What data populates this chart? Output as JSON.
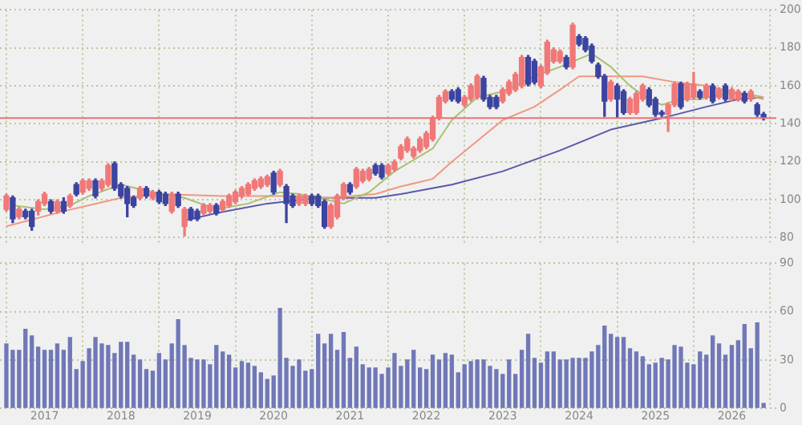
{
  "chart_data": [
    {
      "type": "candlestick",
      "tick_labels": "y",
      "grid": true,
      "xlim": [
        "2016-06",
        "2026-08"
      ],
      "xticks": [
        "2017",
        "2018",
        "2019",
        "2020",
        "2021",
        "2022",
        "2023",
        "2024",
        "2025",
        "2026"
      ],
      "ylim": [
        77,
        200
      ],
      "yticks": [
        80,
        100,
        120,
        140,
        160,
        180,
        200
      ],
      "x": [
        "2016-07",
        "2016-08",
        "2016-09",
        "2016-10",
        "2016-11",
        "2016-12",
        "2017-01",
        "2017-02",
        "2017-03",
        "2017-04",
        "2017-05",
        "2017-06",
        "2017-07",
        "2017-08",
        "2017-09",
        "2017-10",
        "2017-11",
        "2017-12",
        "2018-01",
        "2018-02",
        "2018-03",
        "2018-04",
        "2018-05",
        "2018-06",
        "2018-07",
        "2018-08",
        "2018-09",
        "2018-10",
        "2018-11",
        "2018-12",
        "2019-01",
        "2019-02",
        "2019-03",
        "2019-04",
        "2019-05",
        "2019-06",
        "2019-07",
        "2019-08",
        "2019-09",
        "2019-10",
        "2019-11",
        "2019-12",
        "2020-01",
        "2020-02",
        "2020-03",
        "2020-04",
        "2020-05",
        "2020-06",
        "2020-07",
        "2020-08",
        "2020-09",
        "2020-10",
        "2020-11",
        "2020-12",
        "2021-01",
        "2021-02",
        "2021-03",
        "2021-04",
        "2021-05",
        "2021-06",
        "2021-07",
        "2021-08",
        "2021-09",
        "2021-10",
        "2021-11",
        "2021-12",
        "2022-01",
        "2022-02",
        "2022-03",
        "2022-04",
        "2022-05",
        "2022-06",
        "2022-07",
        "2022-08",
        "2022-09",
        "2022-10",
        "2022-11",
        "2022-12",
        "2023-01",
        "2023-02",
        "2023-03",
        "2023-04",
        "2023-05",
        "2023-06",
        "2023-07",
        "2023-08",
        "2023-09",
        "2023-10",
        "2023-11",
        "2023-12",
        "2024-01",
        "2024-02",
        "2024-03",
        "2024-04",
        "2024-05",
        "2024-06",
        "2024-07",
        "2024-08",
        "2024-09",
        "2024-10",
        "2024-11",
        "2024-12",
        "2025-01",
        "2025-02",
        "2025-03",
        "2025-04",
        "2025-05",
        "2025-06",
        "2025-07",
        "2025-08",
        "2025-09",
        "2025-10",
        "2025-11",
        "2025-12",
        "2026-01",
        "2026-02",
        "2026-03",
        "2026-04",
        "2026-05",
        "2026-06"
      ],
      "ohlc": [
        [
          95,
          103,
          94,
          102
        ],
        [
          101,
          102,
          88,
          90
        ],
        [
          91,
          96,
          90,
          95
        ],
        [
          94,
          95,
          90,
          91
        ],
        [
          94,
          95,
          84,
          86
        ],
        [
          94,
          100,
          92,
          99
        ],
        [
          98,
          104,
          97,
          103
        ],
        [
          99,
          100,
          93,
          94
        ],
        [
          94,
          100,
          93,
          99
        ],
        [
          99,
          101,
          93,
          94
        ],
        [
          97,
          103,
          96,
          102
        ],
        [
          108,
          109,
          102,
          103
        ],
        [
          104,
          111,
          103,
          110
        ],
        [
          106,
          111,
          105,
          110
        ],
        [
          110,
          111,
          101,
          102
        ],
        [
          106,
          111,
          105,
          110
        ],
        [
          108,
          119,
          107,
          118
        ],
        [
          119,
          120,
          105,
          106
        ],
        [
          108,
          109,
          101,
          102
        ],
        [
          106,
          107,
          91,
          98
        ],
        [
          101,
          102,
          96,
          97
        ],
        [
          101,
          107,
          100,
          106
        ],
        [
          106,
          107,
          101,
          102
        ],
        [
          101,
          105,
          100,
          104
        ],
        [
          104,
          105,
          98,
          99
        ],
        [
          103,
          104,
          97,
          98
        ],
        [
          94,
          104,
          93,
          103
        ],
        [
          103,
          104,
          96,
          97
        ],
        [
          86,
          96,
          81,
          95
        ],
        [
          95,
          96,
          89,
          90
        ],
        [
          94,
          95,
          89,
          90
        ],
        [
          93,
          98,
          92,
          97
        ],
        [
          94,
          98,
          93,
          97
        ],
        [
          97,
          98,
          92,
          93
        ],
        [
          95,
          100,
          94,
          99
        ],
        [
          97,
          103,
          96,
          102
        ],
        [
          99,
          105,
          98,
          104
        ],
        [
          102,
          107,
          101,
          106
        ],
        [
          103,
          109,
          102,
          108
        ],
        [
          106,
          111,
          105,
          110
        ],
        [
          107,
          112,
          106,
          111
        ],
        [
          108,
          113,
          107,
          112
        ],
        [
          114,
          115,
          103,
          104
        ],
        [
          108,
          116,
          107,
          115
        ],
        [
          107,
          108,
          88,
          98
        ],
        [
          102,
          103,
          96,
          97
        ],
        [
          98,
          103,
          97,
          102
        ],
        [
          98,
          103,
          97,
          102
        ],
        [
          102,
          103,
          97,
          98
        ],
        [
          102,
          103,
          96,
          97
        ],
        [
          99,
          100,
          85,
          86
        ],
        [
          86,
          98,
          85,
          97
        ],
        [
          91,
          103,
          90,
          102
        ],
        [
          101,
          109,
          100,
          108
        ],
        [
          108,
          109,
          103,
          104
        ],
        [
          107,
          117,
          106,
          116
        ],
        [
          110,
          116,
          109,
          115
        ],
        [
          111,
          117,
          110,
          116
        ],
        [
          118,
          119,
          113,
          114
        ],
        [
          118,
          119,
          111,
          112
        ],
        [
          114,
          119,
          113,
          118
        ],
        [
          116,
          121,
          115,
          120
        ],
        [
          122,
          129,
          121,
          128
        ],
        [
          126,
          133,
          125,
          132
        ],
        [
          123,
          128,
          122,
          127
        ],
        [
          126,
          133,
          125,
          132
        ],
        [
          128,
          136,
          127,
          135
        ],
        [
          132,
          144,
          131,
          143
        ],
        [
          143,
          155,
          142,
          154
        ],
        [
          152,
          158,
          151,
          157
        ],
        [
          157,
          158,
          152,
          153
        ],
        [
          158,
          159,
          151,
          152
        ],
        [
          150,
          155,
          149,
          154
        ],
        [
          153,
          161,
          152,
          160
        ],
        [
          154,
          166,
          153,
          165
        ],
        [
          164,
          165,
          152,
          153
        ],
        [
          154,
          155,
          148,
          149
        ],
        [
          154,
          155,
          148,
          149
        ],
        [
          152,
          159,
          151,
          158
        ],
        [
          156,
          163,
          155,
          162
        ],
        [
          158,
          167,
          157,
          166
        ],
        [
          160,
          176,
          159,
          175
        ],
        [
          175,
          176,
          160,
          161
        ],
        [
          173,
          174,
          161,
          162
        ],
        [
          160,
          171,
          159,
          170
        ],
        [
          167,
          184,
          166,
          183
        ],
        [
          173,
          180,
          172,
          179
        ],
        [
          173,
          179,
          172,
          178
        ],
        [
          175,
          176,
          169,
          170
        ],
        [
          170,
          193,
          169,
          192
        ],
        [
          186,
          187,
          181,
          182
        ],
        [
          185,
          186,
          178,
          179
        ],
        [
          181,
          182,
          172,
          173
        ],
        [
          171,
          172,
          164,
          165
        ],
        [
          165,
          166,
          144,
          152
        ],
        [
          153,
          163,
          152,
          162
        ],
        [
          160,
          161,
          143,
          153
        ],
        [
          157,
          158,
          145,
          146
        ],
        [
          146,
          154,
          145,
          153
        ],
        [
          146,
          157,
          145,
          156
        ],
        [
          153,
          161,
          152,
          160
        ],
        [
          158,
          159,
          149,
          150
        ],
        [
          153,
          154,
          144,
          145
        ],
        [
          146,
          147,
          144,
          145
        ],
        [
          145,
          151,
          136,
          150
        ],
        [
          150,
          162,
          149,
          161
        ],
        [
          161,
          162,
          148,
          149
        ],
        [
          153,
          162,
          152,
          161
        ],
        [
          154,
          167,
          153,
          161
        ],
        [
          157,
          158,
          153,
          154
        ],
        [
          154,
          161,
          153,
          160
        ],
        [
          160,
          161,
          151,
          152
        ],
        [
          154,
          159,
          153,
          158
        ],
        [
          160,
          161,
          152,
          153
        ],
        [
          153,
          159,
          152,
          158
        ],
        [
          153,
          158,
          152,
          157
        ],
        [
          156,
          157,
          151,
          152
        ],
        [
          153,
          158,
          152,
          157
        ],
        [
          150,
          151,
          144,
          145
        ],
        [
          145,
          146,
          142,
          143
        ]
      ],
      "colors": [
        "#f07878",
        "#3c44a0",
        "#f07878",
        "#3c44a0",
        "#3c44a0",
        "#f07878",
        "#f07878",
        "#3c44a0",
        "#f07878",
        "#3c44a0",
        "#f07878",
        "#3c44a0",
        "#f07878",
        "#f07878",
        "#3c44a0",
        "#f07878",
        "#f07878",
        "#3c44a0",
        "#3c44a0",
        "#3c44a0",
        "#3c44a0",
        "#f07878",
        "#3c44a0",
        "#f07878",
        "#3c44a0",
        "#3c44a0",
        "#f07878",
        "#3c44a0",
        "#f07878",
        "#3c44a0",
        "#3c44a0",
        "#f07878",
        "#f07878",
        "#3c44a0",
        "#f07878",
        "#f07878",
        "#f07878",
        "#f07878",
        "#f07878",
        "#f07878",
        "#f07878",
        "#f07878",
        "#3c44a0",
        "#f07878",
        "#3c44a0",
        "#3c44a0",
        "#f07878",
        "#f07878",
        "#3c44a0",
        "#3c44a0",
        "#3c44a0",
        "#f07878",
        "#f07878",
        "#f07878",
        "#3c44a0",
        "#f07878",
        "#f07878",
        "#f07878",
        "#3c44a0",
        "#3c44a0",
        "#f07878",
        "#f07878",
        "#f07878",
        "#f07878",
        "#f07878",
        "#f07878",
        "#f07878",
        "#f07878",
        "#f07878",
        "#f07878",
        "#3c44a0",
        "#3c44a0",
        "#f07878",
        "#f07878",
        "#f07878",
        "#3c44a0",
        "#3c44a0",
        "#3c44a0",
        "#f07878",
        "#f07878",
        "#f07878",
        "#f07878",
        "#3c44a0",
        "#3c44a0",
        "#f07878",
        "#f07878",
        "#f07878",
        "#f07878",
        "#3c44a0",
        "#f07878",
        "#3c44a0",
        "#3c44a0",
        "#3c44a0",
        "#3c44a0",
        "#3c44a0",
        "#f07878",
        "#3c44a0",
        "#3c44a0",
        "#f07878",
        "#f07878",
        "#f07878",
        "#3c44a0",
        "#3c44a0",
        "#3c44a0",
        "#f07878",
        "#f07878",
        "#3c44a0",
        "#f07878",
        "#f07878",
        "#3c44a0",
        "#f07878",
        "#3c44a0",
        "#f07878",
        "#3c44a0",
        "#f07878",
        "#f07878",
        "#3c44a0",
        "#f07878",
        "#3c44a0",
        "#3c44a0"
      ],
      "series": [
        {
          "type": "line",
          "color": "#a8c070",
          "x": [
            "2016-08",
            "2017-01",
            "2017-05",
            "2017-08",
            "2018-01",
            "2018-06",
            "2018-11",
            "2019-04",
            "2019-09",
            "2020-02",
            "2020-05",
            "2020-08",
            "2020-12",
            "2021-04",
            "2021-08",
            "2022-02",
            "2022-05",
            "2022-09",
            "2023-01",
            "2023-06",
            "2023-10",
            "2024-03",
            "2024-06",
            "2024-09",
            "2024-12",
            "2025-02",
            "2025-05",
            "2025-08",
            "2025-12",
            "2026-03",
            "2026-06"
          ],
          "values": [
            97,
            95,
            97,
            102,
            108,
            104,
            101,
            95,
            98,
            104,
            103,
            101,
            98,
            104,
            115,
            127,
            142,
            154,
            157,
            165,
            170,
            177,
            170,
            160,
            153,
            150,
            153,
            153,
            156,
            156,
            154
          ]
        },
        {
          "type": "line",
          "color": "#f09880",
          "x": [
            "2016-07",
            "2017-04",
            "2018-01",
            "2018-07",
            "2019-05",
            "2020-03",
            "2020-10",
            "2021-05",
            "2021-09",
            "2022-02",
            "2022-05",
            "2022-09",
            "2023-01",
            "2023-06",
            "2023-10",
            "2024-01",
            "2024-06",
            "2024-11",
            "2025-04",
            "2025-09",
            "2026-01",
            "2026-06"
          ],
          "values": [
            86,
            94,
            101,
            103,
            102,
            102,
            101,
            103,
            107,
            111,
            120,
            131,
            142,
            149,
            158,
            165,
            165,
            165,
            162,
            160,
            157,
            153
          ]
        },
        {
          "type": "line",
          "color": "#5858a8",
          "x": [
            "2018-11",
            "2019-04",
            "2019-12",
            "2020-08",
            "2021-05",
            "2021-09",
            "2022-05",
            "2023-01",
            "2023-10",
            "2024-06",
            "2025-02",
            "2025-09",
            "2026-02",
            "2026-06"
          ],
          "values": [
            89,
            93,
            98,
            101,
            101,
            103,
            108,
            115,
            126,
            137,
            143,
            149,
            153,
            154
          ]
        }
      ],
      "ref_lines": [
        {
          "axis": "y",
          "value": 143,
          "color": "#f07070"
        }
      ]
    },
    {
      "type": "bar",
      "grid": true,
      "color": "#7078b8",
      "xlim": [
        "2016-06",
        "2026-08"
      ],
      "xticks": [
        "2017",
        "2018",
        "2019",
        "2020",
        "2021",
        "2022",
        "2023",
        "2024",
        "2025",
        "2026"
      ],
      "ylim": [
        0,
        90
      ],
      "yticks": [
        0,
        30,
        60,
        90
      ],
      "x": [
        "2016-07",
        "2016-08",
        "2016-09",
        "2016-10",
        "2016-11",
        "2016-12",
        "2017-01",
        "2017-02",
        "2017-03",
        "2017-04",
        "2017-05",
        "2017-06",
        "2017-07",
        "2017-08",
        "2017-09",
        "2017-10",
        "2017-11",
        "2017-12",
        "2018-01",
        "2018-02",
        "2018-03",
        "2018-04",
        "2018-05",
        "2018-06",
        "2018-07",
        "2018-08",
        "2018-09",
        "2018-10",
        "2018-11",
        "2018-12",
        "2019-01",
        "2019-02",
        "2019-03",
        "2019-04",
        "2019-05",
        "2019-06",
        "2019-07",
        "2019-08",
        "2019-09",
        "2019-10",
        "2019-11",
        "2019-12",
        "2020-01",
        "2020-02",
        "2020-03",
        "2020-04",
        "2020-05",
        "2020-06",
        "2020-07",
        "2020-08",
        "2020-09",
        "2020-10",
        "2020-11",
        "2020-12",
        "2021-01",
        "2021-02",
        "2021-03",
        "2021-04",
        "2021-05",
        "2021-06",
        "2021-07",
        "2021-08",
        "2021-09",
        "2021-10",
        "2021-11",
        "2021-12",
        "2022-01",
        "2022-02",
        "2022-03",
        "2022-04",
        "2022-05",
        "2022-06",
        "2022-07",
        "2022-08",
        "2022-09",
        "2022-10",
        "2022-11",
        "2022-12",
        "2023-01",
        "2023-02",
        "2023-03",
        "2023-04",
        "2023-05",
        "2023-06",
        "2023-07",
        "2023-08",
        "2023-09",
        "2023-10",
        "2023-11",
        "2023-12",
        "2024-01",
        "2024-02",
        "2024-03",
        "2024-04",
        "2024-05",
        "2024-06",
        "2024-07",
        "2024-08",
        "2024-09",
        "2024-10",
        "2024-11",
        "2024-12",
        "2025-01",
        "2025-02",
        "2025-03",
        "2025-04",
        "2025-05",
        "2025-06",
        "2025-07",
        "2025-08",
        "2025-09",
        "2025-10",
        "2025-11",
        "2025-12",
        "2026-01",
        "2026-02",
        "2026-03",
        "2026-04",
        "2026-05",
        "2026-06"
      ],
      "values": [
        40,
        36,
        36,
        49,
        45,
        38,
        36,
        36,
        40,
        36,
        44,
        24,
        29,
        37,
        44,
        40,
        39,
        34,
        41,
        41,
        33,
        30,
        24,
        23,
        34,
        30,
        40,
        55,
        39,
        31,
        30,
        30,
        27,
        39,
        35,
        33,
        25,
        29,
        28,
        26,
        22,
        18,
        20,
        62,
        31,
        26,
        30,
        23,
        24,
        46,
        40,
        46,
        36,
        47,
        31,
        38,
        27,
        25,
        25,
        21,
        25,
        34,
        26,
        30,
        36,
        25,
        24,
        33,
        30,
        34,
        33,
        22,
        27,
        29,
        30,
        30,
        26,
        24,
        21,
        30,
        21,
        36,
        46,
        31,
        28,
        35,
        35,
        30,
        30,
        31,
        31,
        31,
        35,
        39,
        51,
        46,
        44,
        44,
        37,
        35,
        32,
        27,
        28,
        31,
        30,
        39,
        38,
        28,
        27,
        35,
        33,
        45,
        40,
        33,
        39,
        42,
        52,
        37,
        53,
        3
      ]
    }
  ]
}
